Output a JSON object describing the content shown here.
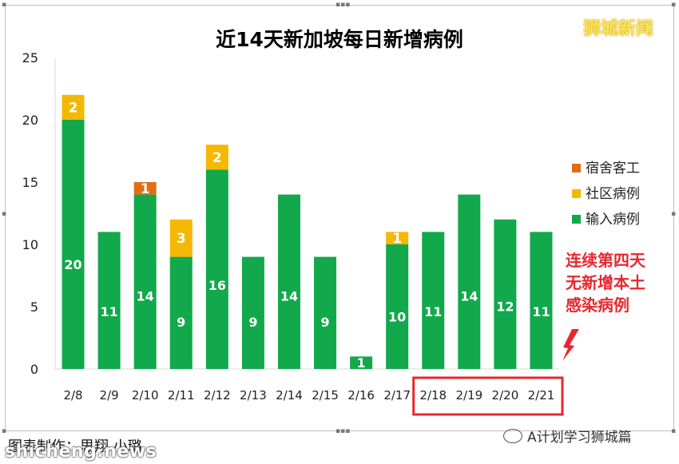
{
  "watermark": "狮城新闻",
  "footer": {
    "credit": "图表制作：思翔 小璐",
    "account": "A计划学习狮城篇",
    "site": "shicheng.news"
  },
  "colors": {
    "import": "#12a84c",
    "community": "#f5b800",
    "dorm": "#df6f14",
    "callout": "#e8282e"
  },
  "chart_data": {
    "type": "bar",
    "stacked": true,
    "title": "近14天新加坡每日新增病例",
    "categories": [
      "2/8",
      "2/9",
      "2/10",
      "2/11",
      "2/12",
      "2/13",
      "2/14",
      "2/15",
      "2/16",
      "2/17",
      "2/18",
      "2/19",
      "2/20",
      "2/21"
    ],
    "series": [
      {
        "name": "输入病例",
        "values": [
          20,
          11,
          14,
          9,
          16,
          9,
          14,
          9,
          1,
          10,
          11,
          14,
          12,
          11
        ]
      },
      {
        "name": "社区病例",
        "values": [
          2,
          0,
          0,
          3,
          2,
          0,
          0,
          0,
          0,
          1,
          0,
          0,
          0,
          0
        ]
      },
      {
        "name": "宿舍客工",
        "values": [
          0,
          0,
          1,
          0,
          0,
          0,
          0,
          0,
          0,
          0,
          0,
          0,
          0,
          0
        ]
      }
    ],
    "ylim": [
      0,
      25
    ],
    "yticks": [
      0,
      5,
      10,
      15,
      20,
      25
    ],
    "grid": false,
    "legend_position": "right",
    "annotation": {
      "lines": [
        "连续第四天",
        "无新增本土",
        "感染病例"
      ],
      "highlight_categories": [
        "2/18",
        "2/19",
        "2/20",
        "2/21"
      ]
    }
  }
}
